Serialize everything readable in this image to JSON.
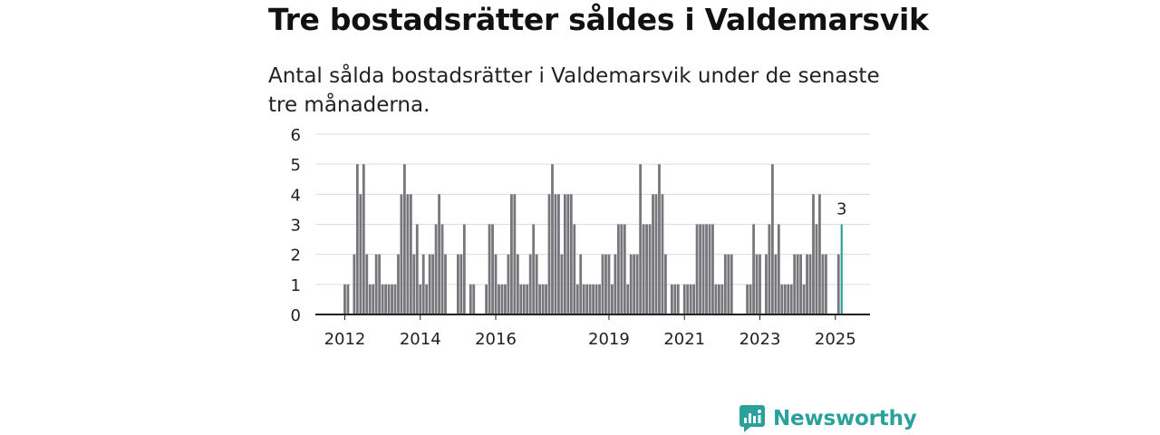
{
  "title": "Tre bostadsrätter såldes i Valdemarsvik",
  "subtitle": "Antal sålda bostadsrätter i Valdemarsvik under de senaste tre månaderna.",
  "brand": {
    "name": "Newsworthy",
    "icon": "newsworthy-logo-icon",
    "color": "#2aa19a"
  },
  "chart_data": {
    "type": "bar",
    "bar_color": "#77767b",
    "highlight_color": "#2aa19a",
    "x_start": "2011-12",
    "x_interval": "month",
    "ylim": [
      0,
      6
    ],
    "y_ticks": [
      0,
      1,
      2,
      3,
      4,
      5,
      6
    ],
    "x_ticks": [
      "2012",
      "2014",
      "2016",
      "2019",
      "2021",
      "2023",
      "2025"
    ],
    "x_tick_months": [
      "2012-01",
      "2014-01",
      "2016-01",
      "2019-01",
      "2021-01",
      "2023-01",
      "2025-01"
    ],
    "values": [
      0,
      1,
      1,
      0,
      2,
      5,
      4,
      5,
      2,
      1,
      1,
      2,
      2,
      1,
      1,
      1,
      1,
      1,
      2,
      4,
      5,
      4,
      4,
      2,
      3,
      1,
      2,
      1,
      2,
      2,
      3,
      4,
      3,
      2,
      0,
      0,
      0,
      2,
      2,
      3,
      0,
      1,
      1,
      0,
      0,
      0,
      1,
      3,
      3,
      2,
      1,
      1,
      1,
      2,
      4,
      4,
      2,
      1,
      1,
      1,
      2,
      3,
      2,
      1,
      1,
      1,
      4,
      5,
      4,
      4,
      2,
      4,
      4,
      4,
      3,
      1,
      2,
      1,
      1,
      1,
      1,
      1,
      1,
      2,
      2,
      2,
      1,
      2,
      3,
      3,
      3,
      1,
      2,
      2,
      2,
      5,
      3,
      3,
      3,
      4,
      4,
      5,
      4,
      2,
      0,
      1,
      1,
      1,
      0,
      1,
      1,
      1,
      1,
      3,
      3,
      3,
      3,
      3,
      3,
      1,
      1,
      1,
      2,
      2,
      2,
      0,
      0,
      0,
      0,
      1,
      1,
      3,
      2,
      2,
      0,
      2,
      3,
      5,
      2,
      3,
      1,
      1,
      1,
      1,
      2,
      2,
      2,
      1,
      2,
      2,
      4,
      3,
      4,
      2,
      2,
      0,
      0,
      0,
      2,
      3
    ],
    "highlight_index": 159,
    "highlight_label": "3",
    "grid": true,
    "legend": "none"
  }
}
